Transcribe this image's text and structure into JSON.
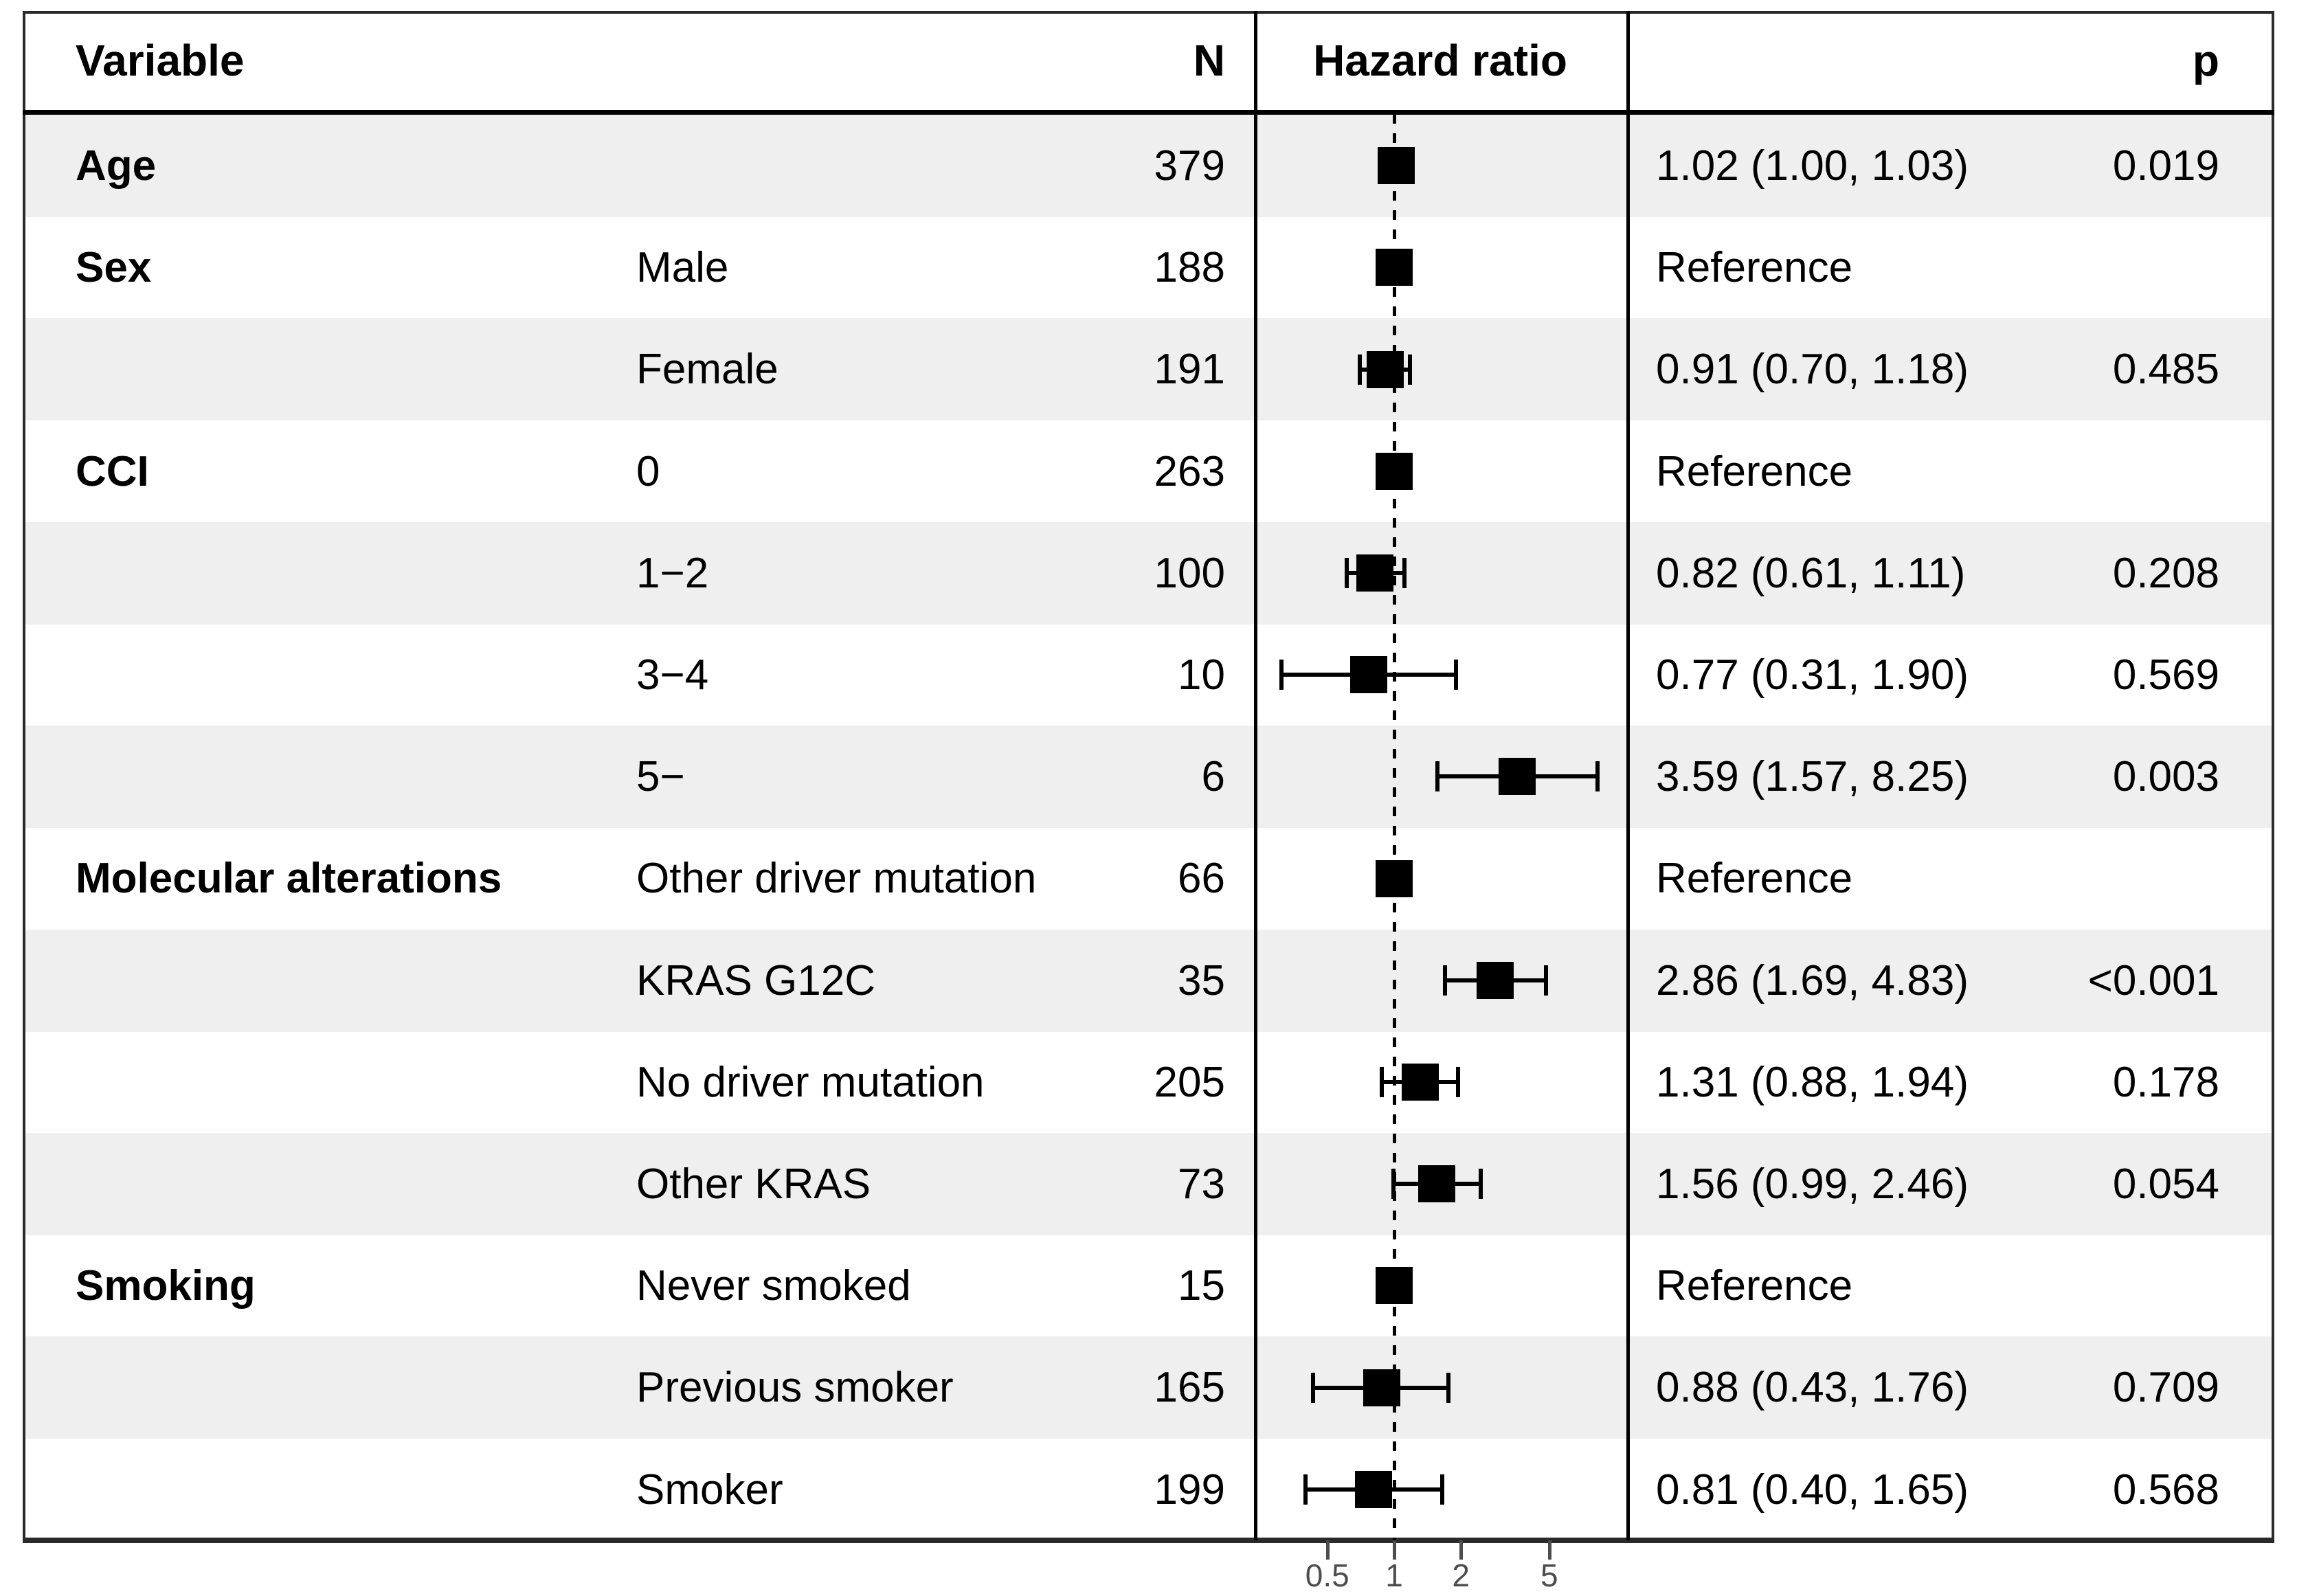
{
  "header": {
    "variable": "Variable",
    "n": "N",
    "hazard_ratio": "Hazard ratio",
    "p": "p"
  },
  "rows": [
    {
      "variable": "Age",
      "level": "",
      "n": "379",
      "estimate": "1.02 (1.00, 1.03)",
      "p": "0.019"
    },
    {
      "variable": "Sex",
      "level": "Male",
      "n": "188",
      "estimate": "Reference",
      "p": ""
    },
    {
      "variable": "",
      "level": "Female",
      "n": "191",
      "estimate": "0.91 (0.70, 1.18)",
      "p": "0.485"
    },
    {
      "variable": "CCI",
      "level": "0",
      "n": "263",
      "estimate": "Reference",
      "p": ""
    },
    {
      "variable": "",
      "level": "1−2",
      "n": "100",
      "estimate": "0.82 (0.61, 1.11)",
      "p": "0.208"
    },
    {
      "variable": "",
      "level": "3−4",
      "n": "10",
      "estimate": "0.77 (0.31, 1.90)",
      "p": "0.569"
    },
    {
      "variable": "",
      "level": "5−",
      "n": "6",
      "estimate": "3.59 (1.57, 8.25)",
      "p": "0.003"
    },
    {
      "variable": "Molecular alterations",
      "level": "Other driver mutation",
      "n": "66",
      "estimate": "Reference",
      "p": ""
    },
    {
      "variable": "",
      "level": "KRAS G12C",
      "n": "35",
      "estimate": "2.86 (1.69, 4.83)",
      "p": "<0.001"
    },
    {
      "variable": "",
      "level": "No driver mutation",
      "n": "205",
      "estimate": "1.31 (0.88, 1.94)",
      "p": "0.178"
    },
    {
      "variable": "",
      "level": "Other KRAS",
      "n": "73",
      "estimate": "1.56 (0.99, 2.46)",
      "p": "0.054"
    },
    {
      "variable": "Smoking",
      "level": "Never smoked",
      "n": "15",
      "estimate": "Reference",
      "p": ""
    },
    {
      "variable": "",
      "level": "Previous smoker",
      "n": "165",
      "estimate": "0.88 (0.43, 1.76)",
      "p": "0.709"
    },
    {
      "variable": "",
      "level": "Smoker",
      "n": "199",
      "estimate": "0.81 (0.40, 1.65)",
      "p": "0.568"
    }
  ],
  "axis": {
    "tick_labels": [
      "0.5",
      "1",
      "2",
      "5"
    ]
  },
  "colors": {
    "row_shade": "#efefef",
    "marker": "#000000",
    "axis_gray": "#4d4d4d"
  },
  "chart_data": {
    "type": "scatter",
    "subtype": "forest-plot",
    "title": "Hazard ratio",
    "categories": [
      "Age",
      "Sex: Male",
      "Sex: Female",
      "CCI: 0",
      "CCI: 1-2",
      "CCI: 3-4",
      "CCI: 5-",
      "Molecular alterations: Other driver mutation",
      "Molecular alterations: KRAS G12C",
      "Molecular alterations: No driver mutation",
      "Molecular alterations: Other KRAS",
      "Smoking: Never smoked",
      "Smoking: Previous smoker",
      "Smoking: Smoker"
    ],
    "n": [
      379,
      188,
      191,
      263,
      100,
      10,
      6,
      66,
      35,
      205,
      73,
      15,
      165,
      199
    ],
    "series": [
      {
        "name": "hazard_ratio",
        "values": [
          1.02,
          1.0,
          0.91,
          1.0,
          0.82,
          0.77,
          3.59,
          1.0,
          2.86,
          1.31,
          1.56,
          1.0,
          0.88,
          0.81
        ]
      },
      {
        "name": "ci_low",
        "values": [
          1.0,
          null,
          0.7,
          null,
          0.61,
          0.31,
          1.57,
          null,
          1.69,
          0.88,
          0.99,
          null,
          0.43,
          0.4
        ]
      },
      {
        "name": "ci_high",
        "values": [
          1.03,
          null,
          1.18,
          null,
          1.11,
          1.9,
          8.25,
          null,
          4.83,
          1.94,
          2.46,
          null,
          1.76,
          1.65
        ]
      }
    ],
    "p_values": [
      "0.019",
      null,
      "0.485",
      null,
      "0.208",
      "0.569",
      "0.003",
      null,
      "<0.001",
      "0.178",
      "0.054",
      null,
      "0.709",
      "0.568"
    ],
    "reference_rows": [
      1,
      3,
      7,
      11
    ],
    "xscale": "log",
    "xticks": [
      0.5,
      1,
      2,
      5
    ],
    "xlim": [
      0.233,
      11.1
    ],
    "reference_line": 1,
    "grid": false,
    "legend": false
  }
}
